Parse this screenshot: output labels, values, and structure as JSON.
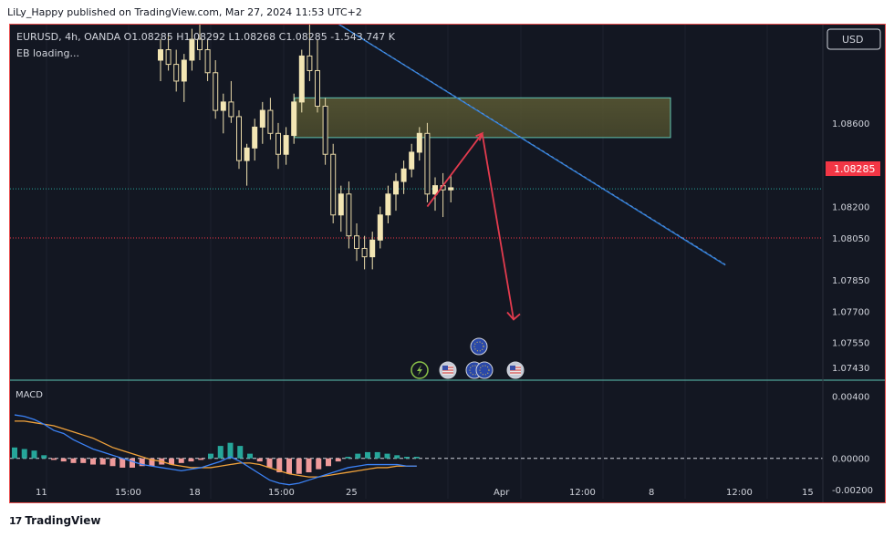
{
  "header": {
    "published_text": "LiLy_Happy published on TradingView.com, Mar 27, 2024 11:53 UTC+2"
  },
  "legend": {
    "symbol_line": "EURUSD, 4h, OANDA O1.08285 H1.08292 L1.08268 C1.08285 -1.543.747 K",
    "loading_text": "EB loading...",
    "currency_button": "USD",
    "macd_label": "MACD"
  },
  "footer": {
    "logo_mark": "17",
    "brand": "TradingView"
  },
  "colors": {
    "background": "#131722",
    "up_candle": "#f3e6b4",
    "down_candle": "#f3e6b4",
    "trendline": "#2f7dd8",
    "arrow": "#e23b4e",
    "zone_fill": "#5b5a34",
    "zone_border": "#5ec4b4",
    "price_tag": "#f23645",
    "macd_line": "#3b82f6",
    "signal_line": "#f0a23b",
    "hist_pos": "#26a69a",
    "hist_neg": "#ef9a9a"
  },
  "chart_data": {
    "type": "candlestick",
    "symbol": "EURUSD",
    "timeframe": "4h",
    "exchange": "OANDA",
    "ohlc": {
      "open": 1.08285,
      "high": 1.08292,
      "low": 1.08268,
      "close": 1.08285,
      "change": "-1.543.747 K"
    },
    "price_axis": {
      "ticks": [
        "1.08600",
        "1.08400",
        "1.08200",
        "1.08050",
        "1.07850",
        "1.07700",
        "1.07550",
        "1.07430"
      ],
      "ylim": [
        1.0737,
        1.0907
      ]
    },
    "time_axis": {
      "ticks": [
        "11",
        "15:00",
        "18",
        "15:00",
        "25",
        "Apr",
        "12:00",
        "8",
        "12:00",
        "15"
      ]
    },
    "current_price": "1.08285",
    "candles": [
      [
        1.089,
        1.09,
        1.088,
        1.0895
      ],
      [
        1.0895,
        1.0903,
        1.0885,
        1.0888
      ],
      [
        1.0888,
        1.0895,
        1.0875,
        1.088
      ],
      [
        1.088,
        1.0893,
        1.087,
        1.089
      ],
      [
        1.089,
        1.0905,
        1.0885,
        1.09
      ],
      [
        1.09,
        1.0908,
        1.089,
        1.0895
      ],
      [
        1.0895,
        1.09,
        1.088,
        1.0884
      ],
      [
        1.0884,
        1.089,
        1.0862,
        1.0866
      ],
      [
        1.0866,
        1.0874,
        1.0855,
        1.087
      ],
      [
        1.087,
        1.088,
        1.086,
        1.0863
      ],
      [
        1.0863,
        1.0866,
        1.0838,
        1.0842
      ],
      [
        1.0842,
        1.085,
        1.083,
        1.0848
      ],
      [
        1.0848,
        1.0862,
        1.0842,
        1.0858
      ],
      [
        1.0858,
        1.087,
        1.085,
        1.0866
      ],
      [
        1.0866,
        1.0872,
        1.0852,
        1.0855
      ],
      [
        1.0855,
        1.086,
        1.0838,
        1.0845
      ],
      [
        1.0845,
        1.0858,
        1.084,
        1.0854
      ],
      [
        1.0854,
        1.0874,
        1.085,
        1.087
      ],
      [
        1.087,
        1.0895,
        1.0865,
        1.0892
      ],
      [
        1.0892,
        1.0908,
        1.088,
        1.0885
      ],
      [
        1.0885,
        1.09,
        1.0865,
        1.0868
      ],
      [
        1.0868,
        1.0872,
        1.084,
        1.0845
      ],
      [
        1.0845,
        1.085,
        1.0812,
        1.0816
      ],
      [
        1.0816,
        1.083,
        1.0808,
        1.0826
      ],
      [
        1.0826,
        1.0832,
        1.08,
        1.0806
      ],
      [
        1.0806,
        1.0812,
        1.0794,
        1.08
      ],
      [
        1.08,
        1.0806,
        1.079,
        1.0796
      ],
      [
        1.0796,
        1.0808,
        1.079,
        1.0804
      ],
      [
        1.0804,
        1.082,
        1.08,
        1.0816
      ],
      [
        1.0816,
        1.083,
        1.0812,
        1.0826
      ],
      [
        1.0826,
        1.0836,
        1.0818,
        1.0832
      ],
      [
        1.0832,
        1.0842,
        1.0826,
        1.0838
      ],
      [
        1.0838,
        1.085,
        1.0834,
        1.0846
      ],
      [
        1.0846,
        1.0858,
        1.0842,
        1.0855
      ],
      [
        1.0855,
        1.086,
        1.0822,
        1.0826
      ],
      [
        1.0826,
        1.0834,
        1.0818,
        1.083
      ],
      [
        1.083,
        1.0836,
        1.0815,
        1.0828
      ],
      [
        1.0828,
        1.0835,
        1.0822,
        1.0829
      ]
    ],
    "resistance_zone": {
      "top": 1.0872,
      "bottom": 1.0853
    },
    "downtrend_line": [
      [
        1.091,
        0
      ],
      [
        1.0792,
        72
      ]
    ],
    "forecast_arrows": [
      [
        1.082,
        34
      ],
      [
        1.0855,
        41
      ],
      [
        1.0766,
        45
      ]
    ],
    "dotted_lines": {
      "current": 1.08285,
      "support": 1.0805
    },
    "macd": {
      "label": "MACD",
      "ticks": [
        "0.00400",
        "0.00000",
        "-0.00200"
      ],
      "ylim": [
        -0.0026,
        0.0048
      ],
      "histogram": [
        0.0007,
        0.0006,
        0.0005,
        0.0002,
        -0.0001,
        -0.0002,
        -0.0003,
        -0.0003,
        -0.0004,
        -0.0004,
        -0.0005,
        -0.0006,
        -0.0006,
        -0.0005,
        -0.0005,
        -0.0004,
        -0.0004,
        -0.0003,
        -0.0002,
        -0.0001,
        0.0003,
        0.0008,
        0.001,
        0.0008,
        0.0003,
        -0.0002,
        -0.0006,
        -0.0009,
        -0.001,
        -0.001,
        -0.0009,
        -0.0007,
        -0.0005,
        -0.0002,
        0.0001,
        0.0003,
        0.0004,
        0.0004,
        0.0003,
        0.0002,
        0.0001,
        0.0001
      ],
      "macd_line": [
        0.0028,
        0.0027,
        0.0025,
        0.0022,
        0.0018,
        0.0016,
        0.0012,
        0.0009,
        0.0006,
        0.0004,
        0.0002,
        0.0,
        -0.0002,
        -0.0004,
        -0.0005,
        -0.0006,
        -0.0007,
        -0.0008,
        -0.0007,
        -0.0006,
        -0.0004,
        -0.0002,
        0.0001,
        -0.0002,
        -0.0006,
        -0.001,
        -0.0014,
        -0.0016,
        -0.0017,
        -0.0016,
        -0.0014,
        -0.0012,
        -0.001,
        -0.0008,
        -0.0006,
        -0.0005,
        -0.0004,
        -0.0004,
        -0.0004,
        -0.0004,
        -0.0005,
        -0.0005
      ],
      "signal_line": [
        0.0024,
        0.0024,
        0.0023,
        0.0022,
        0.0021,
        0.0019,
        0.0017,
        0.0015,
        0.0013,
        0.001,
        0.0007,
        0.0005,
        0.0003,
        0.0001,
        -0.0001,
        -0.0002,
        -0.0004,
        -0.0005,
        -0.0006,
        -0.0006,
        -0.0006,
        -0.0005,
        -0.0004,
        -0.0003,
        -0.0003,
        -0.0004,
        -0.0006,
        -0.0008,
        -0.001,
        -0.0011,
        -0.0012,
        -0.0012,
        -0.0011,
        -0.001,
        -0.0009,
        -0.0008,
        -0.0007,
        -0.0006,
        -0.0006,
        -0.0005,
        -0.0005,
        -0.0005
      ]
    },
    "events": [
      "lightning-icon",
      "us-flag-icon",
      "eu-flag-icon",
      "eu-flag-icon",
      "us-flag-icon",
      "eu-flag-icon"
    ]
  }
}
